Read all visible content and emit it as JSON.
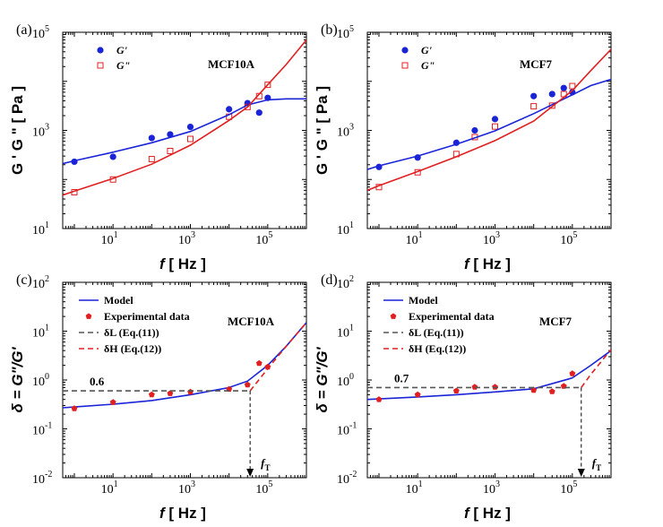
{
  "colors": {
    "blue": "#1a24d6",
    "red": "#e02020",
    "gray": "#555555",
    "black": "#000000"
  },
  "chart_data": [
    {
      "type": "scatter",
      "panel_label": "(a)",
      "title": "MCF10A",
      "xlabel_var": "f",
      "xlabel_unit": "[ Hz ]",
      "ylabel": "G ' G \" [ Pa ]",
      "x_scale": "log",
      "y_scale": "log",
      "xlim": [
        0.5,
        1000000
      ],
      "ylim": [
        10,
        100000
      ],
      "x_ticks": [
        "10",
        "10",
        "10"
      ],
      "x_tick_exp": [
        "1",
        "3",
        "5"
      ],
      "y_ticks": [
        "10",
        "10",
        "10"
      ],
      "y_tick_exp": [
        "1",
        "3",
        "5"
      ],
      "legend": [
        "G'",
        "G\""
      ],
      "series": [
        {
          "name": "G'",
          "kind": "points",
          "marker": "filled-circle",
          "color": "#1a24d6",
          "x": [
            1,
            10,
            100,
            300,
            1000,
            10000,
            30000,
            60000,
            100000
          ],
          "y": [
            230,
            290,
            700,
            830,
            1180,
            2700,
            3600,
            2300,
            4600
          ]
        },
        {
          "name": "G\"",
          "kind": "points",
          "marker": "open-square",
          "color": "#e02020",
          "x": [
            1,
            10,
            100,
            300,
            1000,
            10000,
            30000,
            60000,
            100000
          ],
          "y": [
            55,
            100,
            260,
            380,
            670,
            1900,
            3000,
            5000,
            8500
          ]
        },
        {
          "name": "G' fit",
          "kind": "line",
          "color": "#1a24d6",
          "x": [
            0.5,
            1,
            10,
            100,
            1000,
            10000,
            30000,
            100000,
            300000,
            1000000
          ],
          "y": [
            210,
            240,
            360,
            560,
            950,
            2100,
            3300,
            4200,
            4400,
            4400
          ]
        },
        {
          "name": "G\" fit",
          "kind": "line",
          "color": "#e02020",
          "x": [
            0.5,
            1,
            10,
            100,
            1000,
            10000,
            30000,
            100000,
            300000,
            1000000
          ],
          "y": [
            48,
            58,
            105,
            205,
            500,
            1600,
            3000,
            8500,
            22000,
            70000
          ]
        }
      ]
    },
    {
      "type": "scatter",
      "panel_label": "(b)",
      "title": "MCF7",
      "xlabel_var": "f",
      "xlabel_unit": "[ Hz ]",
      "ylabel": "G ' G \" [ Pa ]",
      "x_scale": "log",
      "y_scale": "log",
      "xlim": [
        0.5,
        1000000
      ],
      "ylim": [
        10,
        100000
      ],
      "x_ticks": [
        "10",
        "10",
        "10"
      ],
      "x_tick_exp": [
        "1",
        "3",
        "5"
      ],
      "y_ticks": [
        "10",
        "10",
        "10"
      ],
      "y_tick_exp": [
        "1",
        "3",
        "5"
      ],
      "legend": [
        "G'",
        "G\""
      ],
      "series": [
        {
          "name": "G'",
          "kind": "points",
          "marker": "filled-circle",
          "color": "#1a24d6",
          "x": [
            1,
            10,
            100,
            300,
            1000,
            10000,
            30000,
            60000,
            100000
          ],
          "y": [
            180,
            280,
            560,
            1000,
            1700,
            5000,
            5500,
            7300,
            6000
          ]
        },
        {
          "name": "G\"",
          "kind": "points",
          "marker": "open-square",
          "color": "#e02020",
          "x": [
            1,
            10,
            100,
            300,
            1000,
            10000,
            30000,
            60000,
            100000
          ],
          "y": [
            70,
            140,
            330,
            730,
            1200,
            3100,
            3200,
            5500,
            8000
          ]
        },
        {
          "name": "G' fit",
          "kind": "line",
          "color": "#1a24d6",
          "x": [
            0.5,
            1,
            10,
            100,
            1000,
            10000,
            100000,
            300000,
            1000000
          ],
          "y": [
            160,
            190,
            300,
            520,
            980,
            2200,
            5300,
            8200,
            11000
          ]
        },
        {
          "name": "G\" fit",
          "kind": "line",
          "color": "#e02020",
          "x": [
            0.5,
            1,
            10,
            100,
            1000,
            10000,
            100000,
            300000,
            1000000
          ],
          "y": [
            60,
            75,
            145,
            290,
            620,
            1550,
            6500,
            16500,
            45000
          ]
        }
      ]
    },
    {
      "type": "line",
      "panel_label": "(c)",
      "title": "MCF10A",
      "xlabel_var": "f",
      "xlabel_unit": "[ Hz ]",
      "ylabel": "δ = G\"/G'",
      "x_scale": "log",
      "y_scale": "log",
      "xlim": [
        0.5,
        1000000
      ],
      "ylim": [
        0.01,
        100
      ],
      "x_ticks": [
        "10",
        "10",
        "10"
      ],
      "x_tick_exp": [
        "1",
        "3",
        "5"
      ],
      "y_ticks": [
        "10",
        "10",
        "10",
        "10",
        "10"
      ],
      "y_tick_exp": [
        "-2",
        "-1",
        "0",
        "1",
        "2"
      ],
      "legend": [
        "Model",
        "Experimental data",
        "δL (Eq.(11))",
        "δH (Eq.(12))"
      ],
      "annotation_value": "0.6",
      "transition_label": "f",
      "transition_sub": "T",
      "transition_x": 35000,
      "series": [
        {
          "name": "Model",
          "kind": "line",
          "color": "#1a24d6",
          "x": [
            0.5,
            1,
            10,
            100,
            1000,
            10000,
            30000,
            100000,
            300000,
            1000000
          ],
          "y": [
            0.27,
            0.28,
            0.32,
            0.38,
            0.5,
            0.7,
            0.95,
            2.0,
            4.9,
            15
          ]
        },
        {
          "name": "Experimental data",
          "kind": "points",
          "marker": "filled-pentagon",
          "color": "#e02020",
          "x": [
            1,
            10,
            100,
            300,
            1000,
            10000,
            30000,
            60000,
            100000
          ],
          "y": [
            0.26,
            0.35,
            0.5,
            0.53,
            0.57,
            0.65,
            0.8,
            2.2,
            1.85
          ]
        },
        {
          "name": "δL (Eq.(11))",
          "kind": "line",
          "dash": true,
          "color": "#555555",
          "x": [
            0.5,
            35000
          ],
          "y": [
            0.6,
            0.6
          ]
        },
        {
          "name": "δH (Eq.(12))",
          "kind": "line",
          "dash": true,
          "color": "#e02020",
          "x": [
            35000,
            100000,
            300000,
            1000000
          ],
          "y": [
            0.6,
            1.7,
            4.9,
            15
          ]
        }
      ]
    },
    {
      "type": "line",
      "panel_label": "(d)",
      "title": "MCF7",
      "xlabel_var": "f",
      "xlabel_unit": "[ Hz ]",
      "ylabel": "δ = G\"/G'",
      "x_scale": "log",
      "y_scale": "log",
      "xlim": [
        0.5,
        1000000
      ],
      "ylim": [
        0.01,
        100
      ],
      "x_ticks": [
        "10",
        "10",
        "10"
      ],
      "x_tick_exp": [
        "1",
        "3",
        "5"
      ],
      "y_ticks": [
        "10",
        "10",
        "10",
        "10",
        "10"
      ],
      "y_tick_exp": [
        "-2",
        "-1",
        "0",
        "1",
        "2"
      ],
      "legend": [
        "Model",
        "Experimental data",
        "δL (Eq.(11))",
        "δH (Eq.(12))"
      ],
      "annotation_value": "0.7",
      "transition_label": "f",
      "transition_sub": "T",
      "transition_x": 170000,
      "series": [
        {
          "name": "Model",
          "kind": "line",
          "color": "#1a24d6",
          "x": [
            0.5,
            1,
            10,
            100,
            1000,
            10000,
            100000,
            300000,
            1000000
          ],
          "y": [
            0.4,
            0.41,
            0.45,
            0.5,
            0.57,
            0.66,
            1.1,
            2.0,
            4.0
          ]
        },
        {
          "name": "Experimental data",
          "kind": "points",
          "marker": "filled-pentagon",
          "color": "#e02020",
          "x": [
            1,
            10,
            100,
            300,
            1000,
            10000,
            30000,
            60000,
            100000
          ],
          "y": [
            0.4,
            0.5,
            0.6,
            0.72,
            0.72,
            0.62,
            0.58,
            0.75,
            1.35
          ]
        },
        {
          "name": "δL (Eq.(11))",
          "kind": "line",
          "dash": true,
          "color": "#555555",
          "x": [
            0.5,
            170000
          ],
          "y": [
            0.7,
            0.7
          ]
        },
        {
          "name": "δH (Eq.(12))",
          "kind": "line",
          "dash": true,
          "color": "#e02020",
          "x": [
            170000,
            300000,
            1000000
          ],
          "y": [
            0.7,
            1.3,
            4.2
          ]
        }
      ]
    }
  ]
}
